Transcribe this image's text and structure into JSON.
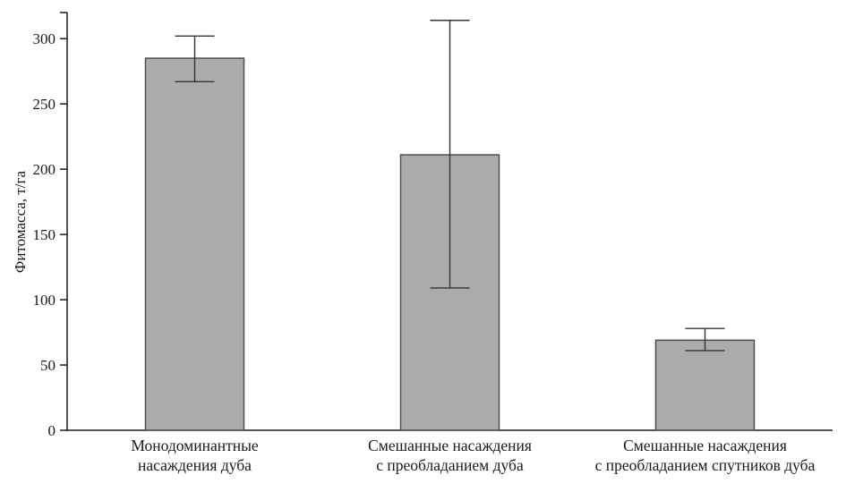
{
  "chart_data": {
    "type": "bar",
    "title": "",
    "xlabel": "",
    "ylabel": "Фитомасса, т/га",
    "categories": [
      [
        "Монодоминантные",
        "насаждения дуба"
      ],
      [
        "Смешанные насаждения",
        "с преобладанием дуба"
      ],
      [
        "Смешанные насаждения",
        "с преобладанием спутников дуба"
      ]
    ],
    "values": [
      285,
      211,
      69
    ],
    "error_low": [
      267,
      109,
      61
    ],
    "error_high": [
      302,
      314,
      78
    ],
    "yticks": [
      0,
      50,
      100,
      150,
      200,
      250,
      300
    ],
    "ylim": [
      0,
      320
    ],
    "grid": "off",
    "legend": "none",
    "bar_color": "#ababab",
    "bar_border": "#4f4f4f",
    "error_color": "#333333",
    "axis_color": "#1a1a1a"
  }
}
